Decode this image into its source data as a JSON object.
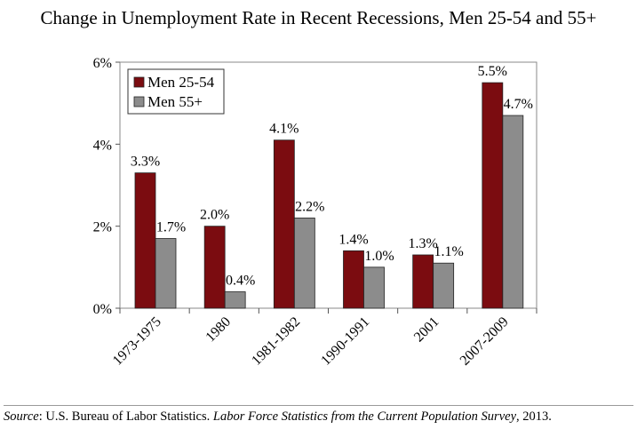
{
  "chart_data": {
    "type": "bar",
    "title": "Change in Unemployment Rate in Recent Recessions, Men 25-54 and 55+",
    "categories": [
      "1973-1975",
      "1980",
      "1981-1982",
      "1990-1991",
      "2001",
      "2007-2009"
    ],
    "series": [
      {
        "name": "Men 25-54",
        "color": "#7b0c10",
        "values": [
          3.3,
          2.0,
          4.1,
          1.4,
          1.3,
          5.5
        ],
        "labels": [
          "3.3%",
          "2.0%",
          "4.1%",
          "1.4%",
          "1.3%",
          "5.5%"
        ]
      },
      {
        "name": "Men 55+",
        "color": "#8c8c8c",
        "values": [
          1.7,
          0.4,
          2.2,
          1.0,
          1.1,
          4.7
        ],
        "labels": [
          "1.7%",
          "0.4%",
          "2.2%",
          "1.0%",
          "1.1%",
          "4.7%"
        ]
      }
    ],
    "ylim": [
      0,
      6
    ],
    "yticks": [
      0,
      2,
      4,
      6
    ],
    "ytick_labels": [
      "0%",
      "2%",
      "4%",
      "6%"
    ],
    "grid": false,
    "legend_position": "top-left"
  },
  "source": {
    "label": "Source",
    "text_before": ": U.S. Bureau of Labor Statistics. ",
    "publication": "Labor Force Statistics from the Current Population Survey",
    "text_after": ", 2013."
  }
}
